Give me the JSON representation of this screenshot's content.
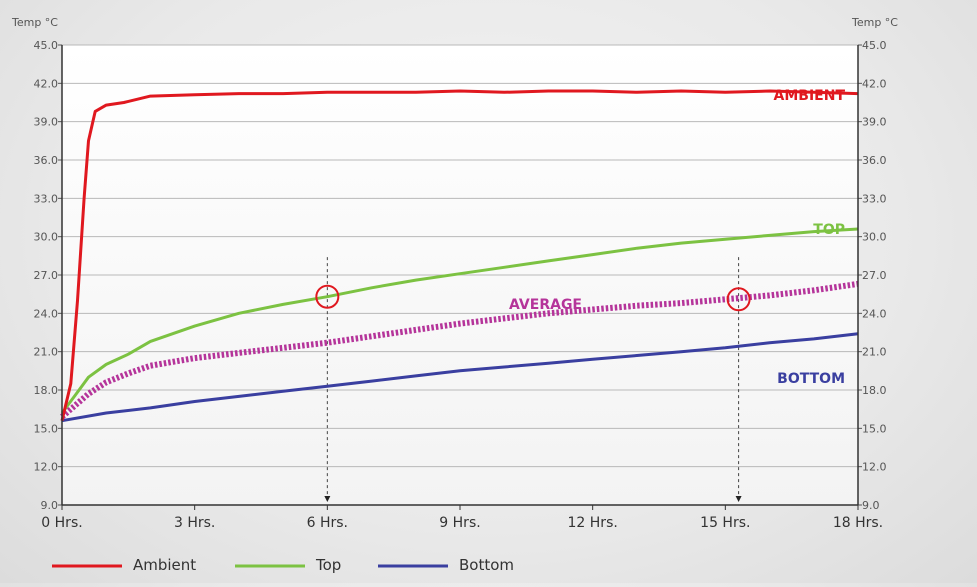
{
  "chart_data": {
    "type": "line",
    "left_axis_label": "Temp °C",
    "right_axis_label": "Temp °C",
    "xlim": [
      0,
      18
    ],
    "ylim": [
      9,
      45
    ],
    "y_ticks": [
      "9.0",
      "12.0",
      "15.0",
      "18.0",
      "21.0",
      "24.0",
      "27.0",
      "30.0",
      "33.0",
      "36.0",
      "39.0",
      "42.0",
      "45.0"
    ],
    "x_ticks": [
      "0 Hrs.",
      "3 Hrs.",
      "6 Hrs.",
      "9 Hrs.",
      "12 Hrs.",
      "15 Hrs.",
      "18 Hrs."
    ],
    "grid": true,
    "series": [
      {
        "name": "Ambient",
        "label": "AMBIENT",
        "color": "#e0181f",
        "x": [
          0,
          0.2,
          0.35,
          0.5,
          0.6,
          0.75,
          1.0,
          1.4,
          2.0,
          3.0,
          4.0,
          5.0,
          6.0,
          7.0,
          8.0,
          9.0,
          10.0,
          11.0,
          12.0,
          13.0,
          14.0,
          15.0,
          16.0,
          17.0,
          18.0
        ],
        "y": [
          15.6,
          18.5,
          25.0,
          33.0,
          37.5,
          39.8,
          40.3,
          40.5,
          41.0,
          41.1,
          41.2,
          41.2,
          41.3,
          41.3,
          41.3,
          41.4,
          41.3,
          41.4,
          41.4,
          41.3,
          41.4,
          41.3,
          41.4,
          41.3,
          41.2
        ]
      },
      {
        "name": "Top",
        "label": "TOP",
        "color": "#7cc242",
        "x": [
          0,
          0.3,
          0.6,
          1.0,
          1.5,
          2.0,
          3.0,
          4.0,
          5.0,
          6.0,
          7.0,
          8.0,
          9.0,
          10.0,
          11.0,
          12.0,
          13.0,
          14.0,
          15.0,
          16.0,
          17.0,
          18.0
        ],
        "y": [
          16.2,
          17.6,
          19.0,
          20.0,
          20.8,
          21.8,
          23.0,
          24.0,
          24.7,
          25.3,
          26.0,
          26.6,
          27.1,
          27.6,
          28.1,
          28.6,
          29.1,
          29.5,
          29.8,
          30.1,
          30.4,
          30.6
        ]
      },
      {
        "name": "Average",
        "label": "AVERAGE",
        "color": "#b5349a",
        "x": [
          0,
          0.3,
          0.6,
          1.0,
          1.5,
          2.0,
          3.0,
          4.0,
          5.0,
          6.0,
          7.0,
          8.0,
          9.0,
          10.0,
          11.0,
          12.0,
          13.0,
          14.0,
          15.0,
          16.0,
          17.0,
          18.0
        ],
        "y": [
          15.9,
          16.8,
          17.7,
          18.6,
          19.3,
          19.9,
          20.5,
          20.9,
          21.3,
          21.7,
          22.2,
          22.7,
          23.2,
          23.6,
          24.0,
          24.3,
          24.6,
          24.8,
          25.1,
          25.4,
          25.8,
          26.3
        ]
      },
      {
        "name": "Bottom",
        "label": "BOTTOM",
        "color": "#3a3fa0",
        "x": [
          0,
          1.0,
          2.0,
          3.0,
          4.0,
          5.0,
          6.0,
          7.0,
          8.0,
          9.0,
          10.0,
          11.0,
          12.0,
          13.0,
          14.0,
          15.0,
          16.0,
          17.0,
          18.0
        ],
        "y": [
          15.6,
          16.2,
          16.6,
          17.1,
          17.5,
          17.9,
          18.3,
          18.7,
          19.1,
          19.5,
          19.8,
          20.1,
          20.4,
          20.7,
          21.0,
          21.3,
          21.7,
          22.0,
          22.4
        ]
      }
    ],
    "markers": [
      {
        "x": 6.0,
        "y": 25.3,
        "series": "Top"
      },
      {
        "x": 15.3,
        "y": 25.1,
        "series": "Average"
      }
    ],
    "legend": {
      "position": "bottom-left",
      "items": [
        {
          "name": "Ambient",
          "color": "#e0181f"
        },
        {
          "name": "Top",
          "color": "#7cc242"
        },
        {
          "name": "Bottom",
          "color": "#3a3fa0"
        }
      ]
    }
  }
}
